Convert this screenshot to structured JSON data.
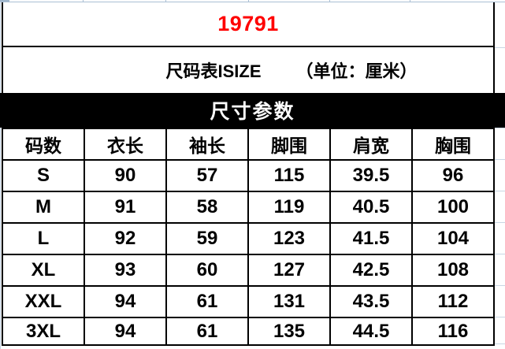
{
  "colors": {
    "accent_red": "#ff0000",
    "bar_background": "#000000",
    "table_border": "#000000",
    "gridline": "#aabfd4"
  },
  "header": {
    "product_code": "19791"
  },
  "subtitle": {
    "label": "尺码表ISIZE",
    "unit": "（单位：厘米）"
  },
  "section": {
    "title": "尺寸参数"
  },
  "table": {
    "columns": [
      "码数",
      "衣长",
      "袖长",
      "脚围",
      "肩宽",
      "胸围"
    ],
    "rows": [
      [
        "S",
        "90",
        "57",
        "115",
        "39.5",
        "96"
      ],
      [
        "M",
        "91",
        "58",
        "119",
        "40.5",
        "100"
      ],
      [
        "L",
        "92",
        "59",
        "123",
        "41.5",
        "104"
      ],
      [
        "XL",
        "93",
        "60",
        "127",
        "42.5",
        "108"
      ],
      [
        "XXL",
        "94",
        "61",
        "131",
        "43.5",
        "112"
      ],
      [
        "3XL",
        "94",
        "61",
        "135",
        "44.5",
        "116"
      ]
    ]
  }
}
